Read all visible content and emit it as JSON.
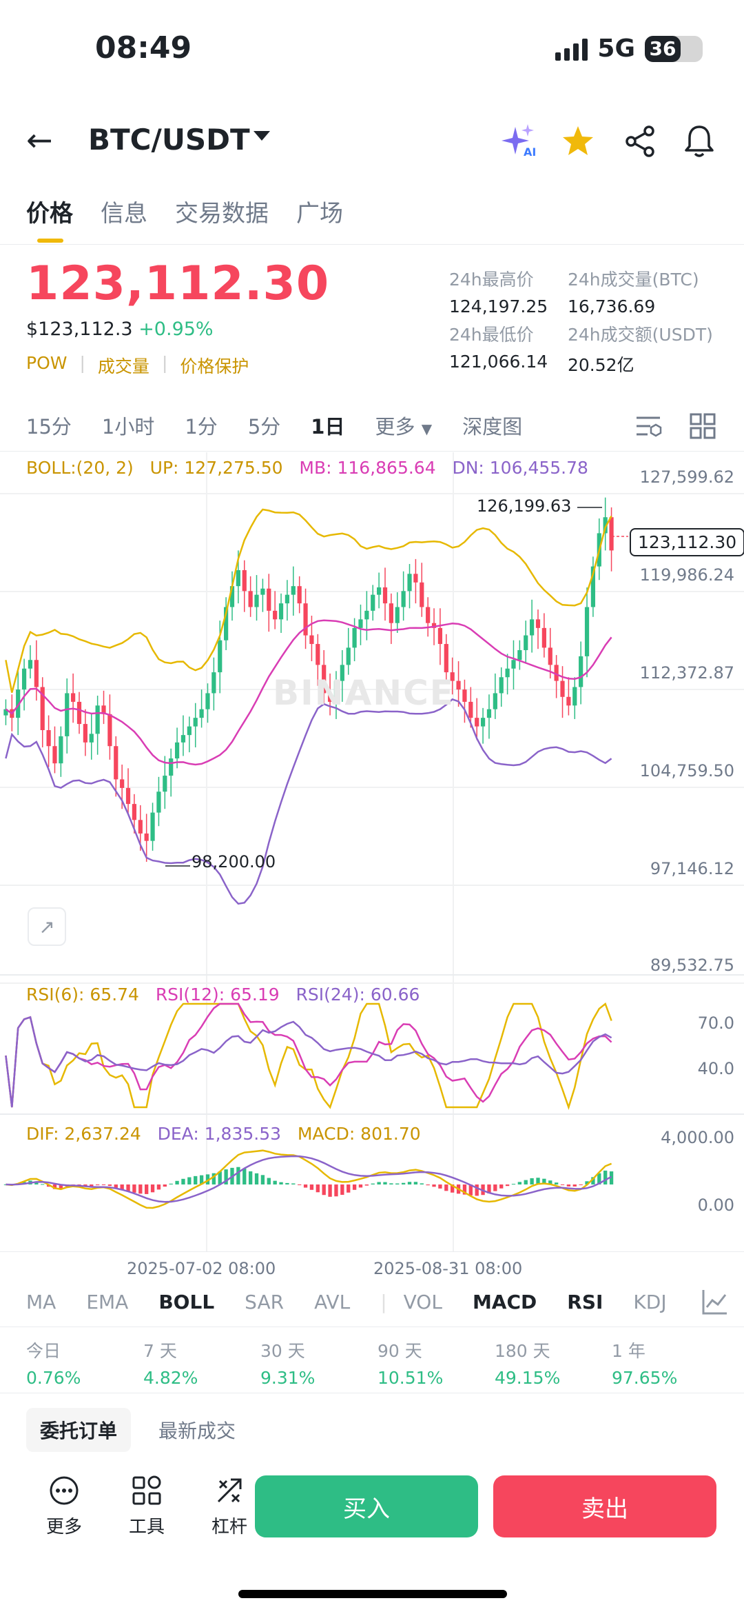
{
  "status_bar": {
    "time": "08:49",
    "network": "5G",
    "battery": "36"
  },
  "header": {
    "pair": "BTC/USDT"
  },
  "tabs": [
    "价格",
    "信息",
    "交易数据",
    "广场"
  ],
  "price": {
    "last": "123,112.30",
    "usd": "$123,112.3",
    "change": "+0.95%",
    "tags": [
      "POW",
      "成交量",
      "价格保护"
    ]
  },
  "stats": {
    "high_label": "24h最高价",
    "high": "124,197.25",
    "vol_btc_label": "24h成交量(BTC)",
    "vol_btc": "16,736.69",
    "low_label": "24h最低价",
    "low": "121,066.14",
    "vol_usdt_label": "24h成交额(USDT)",
    "vol_usdt": "20.52亿"
  },
  "timeframes": [
    "15分",
    "1小时",
    "1分",
    "5分",
    "1日",
    "更多",
    "深度图"
  ],
  "selected_timeframe": "1日",
  "boll": {
    "label": "BOLL:(20, 2)",
    "up": "UP: 127,275.50",
    "mb": "MB: 116,865.64",
    "dn": "DN: 106,455.78"
  },
  "price_axis": [
    "127,599.62",
    "119,986.24",
    "112,372.87",
    "104,759.50",
    "97,146.12",
    "89,532.75"
  ],
  "annotations": {
    "high": "126,199.63",
    "low": "98,200.00",
    "current": "123,112.30"
  },
  "watermark": "BINANCE",
  "rsi": {
    "r6": "RSI(6): 65.74",
    "r12": "RSI(12): 65.19",
    "r24": "RSI(24): 60.66",
    "axis": [
      "70.0",
      "40.0"
    ]
  },
  "macd": {
    "dif": "DIF: 2,637.24",
    "dea": "DEA: 1,835.53",
    "macd": "MACD: 801.70",
    "axis": [
      "4,000.00",
      "0.00"
    ]
  },
  "date_axis": [
    "2025-07-02 08:00",
    "2025-08-31 08:00"
  ],
  "indicator_tabs": [
    "MA",
    "EMA",
    "BOLL",
    "SAR",
    "AVL",
    "VOL",
    "MACD",
    "RSI",
    "KDJ"
  ],
  "selected_indicators": [
    "BOLL",
    "MACD",
    "RSI"
  ],
  "performance": [
    {
      "label": "今日",
      "value": "0.76%"
    },
    {
      "label": "7 天",
      "value": "4.82%"
    },
    {
      "label": "30 天",
      "value": "9.31%"
    },
    {
      "label": "90 天",
      "value": "10.51%"
    },
    {
      "label": "180 天",
      "value": "49.15%"
    },
    {
      "label": "1 年",
      "value": "97.65%"
    }
  ],
  "order_tabs": [
    "委托订单",
    "最新成交"
  ],
  "tools": [
    {
      "label": "更多",
      "icon": "more-icon"
    },
    {
      "label": "工具",
      "icon": "grid-icon"
    },
    {
      "label": "杠杆",
      "icon": "leverage-icon"
    }
  ],
  "actions": {
    "buy": "买入",
    "sell": "卖出"
  },
  "colors": {
    "up": "#2ebd85",
    "down": "#f6465d",
    "accent": "#f0b90b",
    "boll_up": "#e6b800",
    "boll_mb": "#d93db4",
    "boll_dn": "#8a63c9"
  },
  "chart_data": {
    "type": "candlestick",
    "timeframe": "1日",
    "close_series": [
      110.2,
      109.5,
      111.8,
      113.5,
      114.2,
      112.0,
      108.5,
      107.2,
      105.8,
      108.0,
      111.5,
      110.8,
      109.0,
      107.5,
      108.2,
      110.5,
      109.8,
      107.2,
      104.5,
      103.8,
      102.5,
      101.2,
      100.1,
      99.5,
      101.8,
      103.5,
      104.8,
      106.2,
      107.5,
      108.1,
      108.8,
      109.5,
      110.2,
      111.5,
      113.2,
      115.8,
      118.5,
      120.2,
      121.5,
      119.8,
      118.5,
      119.5,
      120.0,
      118.2,
      117.5,
      118.8,
      119.5,
      120.2,
      118.8,
      116.2,
      115.5,
      113.8,
      111.5,
      110.8,
      112.5,
      113.8,
      115.2,
      116.8,
      117.5,
      118.2,
      119.5,
      120.1,
      118.8,
      117.2,
      118.5,
      119.8,
      121.2,
      120.5,
      118.5,
      117.2,
      116.8,
      115.5,
      113.2,
      112.5,
      111.8,
      110.8,
      109.5,
      108.8,
      109.5,
      110.2,
      111.5,
      112.8,
      113.5,
      114.2,
      115.0,
      116.2,
      117.5,
      116.8,
      115.2,
      113.8,
      112.5,
      111.2,
      110.5,
      112.0,
      114.5,
      118.5,
      121.8,
      124.5,
      125.8,
      123.1
    ]
  }
}
